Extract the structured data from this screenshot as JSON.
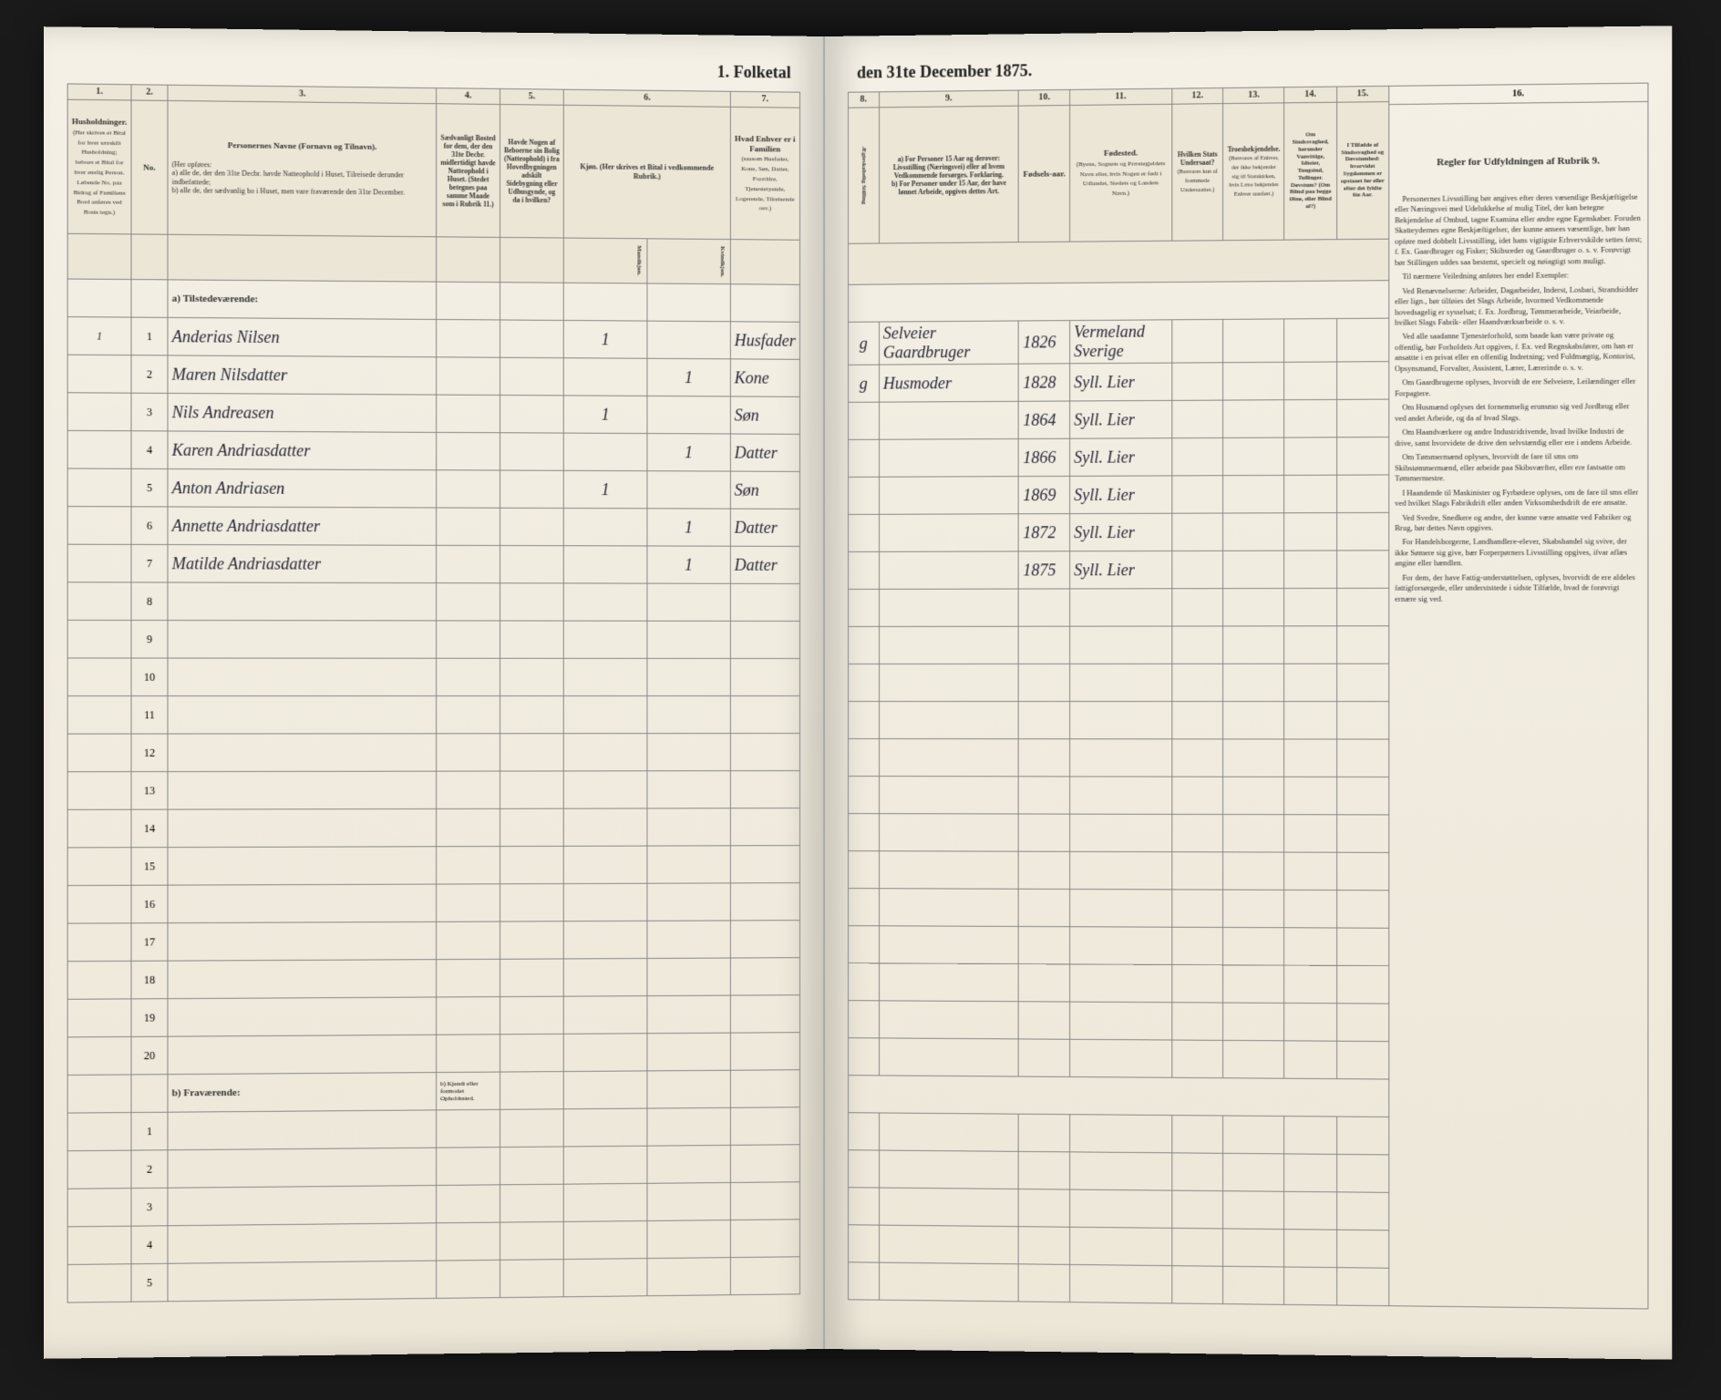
{
  "title_left": "1. Folketal",
  "title_right": "den 31te December 1875.",
  "columns": {
    "c1": "1.",
    "c2": "2.",
    "c3": "3.",
    "c4": "4.",
    "c5": "5.",
    "c6": "6.",
    "c7": "7.",
    "c8": "8.",
    "c9": "9.",
    "c10": "10.",
    "c11": "11.",
    "c12": "12.",
    "c13": "13.",
    "c14": "14.",
    "c15": "15.",
    "c16": "16."
  },
  "headers": {
    "h1": "Husholdninger.",
    "h1_sub": "(Her skrives et Bital for hver særskilt Husholdning; beboes et Bital for hver enslig Person. Løbende No. paa Bidrag af Familiens Bord anføres ved Bosts tegn.)",
    "h2": "No.",
    "h3": "Personernes Navne (Fornavn og Tilnavn).",
    "h3_sub": "(Her opføres:\na) alle de, der den 31te Decbr. havde Natteophold i Huset, Tilreisede derunder indbefattede;\nb) alle de, der sædvanlig bo i Huset, men vare fraværende den 31te December.",
    "h4": "Sædvanligt Bosted for dem, der den 31te Decbr. midlertidigt havde Natteophold i Huset. (Stedet betegnes paa samme Maade som i Rubrik 11.)",
    "h5": "Havde Nogen af Beboerne sin Bolig (Natteophold) i fra Hovedbygningen adskilt Sidebygning eller Udhusgynde, og da i hvilken?",
    "h6": "Kjøn. (Her skrives et Bital i vedkommende Rubrik.)",
    "h6a": "Mandkjøn.",
    "h6b": "Kvindkjøn.",
    "h7": "Hvad Enhver er i Familien",
    "h7_sub": "(saasom Husfader, Kone, Søn, Datter, Forældre, Tjenestetyende, Logerende, Tilreisende osv.)",
    "h8": "Ægteskabelig Stilling",
    "h9": "a) For Personer 15 Aar og derover: Livsstilling (Næringsvei) eller af hvem Vedkommende forsørges. Forklaring.\nb) For Personer under 15 Aar, der have lønnet Arbeide, opgives dettes Art.",
    "h10": "Fødsels-aar.",
    "h11": "Fødested.",
    "h11_sub": "(Byens, Sognets og Præstegjeldets Navn eller, hvis Nogen er født i Udlandet, Stedets og Landets Navn.)",
    "h12": "Hvilken Stats Undersaat?",
    "h12_sub": "(Besvares kun af fremmede Undersaatter.)",
    "h13": "Troesbekjendelse.",
    "h13_sub": "(Besvares af Enhver, der ikke bekjender sig til Statskirken, hvis Lære bekjendes Enhver uanført.)",
    "h14": "Om Sindssvaghed, herunder Vanvittige, Idioter, Tungsind, Tullinger. Døvstum? (Om Blind paa begge Øine, eller Blind af?)",
    "h15": "I Tilfælde af Sindssvaghed og Døvstumhed: hvorvidet Sygdommen er opstaaet før eller efter det fyldte 6te Aar.",
    "h16_title": "Regler for Udfyldningen af Rubrik 9."
  },
  "section_a": "a) Tilstedeværende:",
  "section_b": "b) Fraværende:",
  "section_b_note": "b) Kjendt eller formodet Opholdssted.",
  "rows": [
    {
      "n": "1",
      "hh": "1",
      "name": "Anderias Nilsen",
      "col6a": "1",
      "col6b": "",
      "rel": "Husfader",
      "est": "g",
      "occ": "Selveier Gaardbruger",
      "year": "1826",
      "place": "Vermeland Sverige"
    },
    {
      "n": "2",
      "hh": "",
      "name": "Maren Nilsdatter",
      "col6a": "",
      "col6b": "1",
      "rel": "Kone",
      "est": "g",
      "occ": "Husmoder",
      "year": "1828",
      "place": "Syll. Lier"
    },
    {
      "n": "3",
      "hh": "",
      "name": "Nils Andreasen",
      "col6a": "1",
      "col6b": "",
      "rel": "Søn",
      "est": "",
      "occ": "",
      "year": "1864",
      "place": "Syll. Lier"
    },
    {
      "n": "4",
      "hh": "",
      "name": "Karen Andriasdatter",
      "col6a": "",
      "col6b": "1",
      "rel": "Datter",
      "est": "",
      "occ": "",
      "year": "1866",
      "place": "Syll. Lier"
    },
    {
      "n": "5",
      "hh": "",
      "name": "Anton Andriasen",
      "col6a": "1",
      "col6b": "",
      "rel": "Søn",
      "est": "",
      "occ": "",
      "year": "1869",
      "place": "Syll. Lier"
    },
    {
      "n": "6",
      "hh": "",
      "name": "Annette Andriasdatter",
      "col6a": "",
      "col6b": "1",
      "rel": "Datter",
      "est": "",
      "occ": "",
      "year": "1872",
      "place": "Syll. Lier"
    },
    {
      "n": "7",
      "hh": "",
      "name": "Matilde Andriasdatter",
      "col6a": "",
      "col6b": "1",
      "rel": "Datter",
      "est": "",
      "occ": "",
      "year": "1875",
      "place": "Syll. Lier"
    }
  ],
  "empty_rows_a": [
    "8",
    "9",
    "10",
    "11",
    "12",
    "13",
    "14",
    "15",
    "16",
    "17",
    "18",
    "19",
    "20"
  ],
  "empty_rows_b": [
    "1",
    "2",
    "3",
    "4",
    "5"
  ],
  "instructions": {
    "header": "Regler for Udfyldningen\naf\nRubrik 9.",
    "p1": "Personernes Livsstilling bør angives efter deres væsentlige Beskjæftigelse eller Næringsvei med Udelukkelse af mulig Titel, der kan betegne Bekjendelse af Ombud, tagne Examina eller andre egne Egenskaber. Foruden Skatteydernes egne Beskjæftigelser, der kunne ansees væsentlige, bør han opføre med dobbelt Livsstilling, idet hans vigtigste Erhvervskilde settes først; f. Ex. Gaardbruger og Fisker; Skibsreder og Gaardbruger o. s. v. Forøvrigt bør Stillingen uddes saa bestemt, specielt og nøiagtigt som muligt.",
    "p2": "Til nærmere Veiledning anføres her endel Exempler:",
    "p3": "Ved Benævnelserne: Arbeider, Dagarbeider, Inderst, Losbari, Strandsidder eller lign., bør tilføies det Slags Arbeide, hvormed Vedkommende hovedsagelig er sysselsat; f. Ex. Jordbrug, Tømmerarbeide, Veiarbeide, hvilket Slags Fabrik- eller Haandværksarbeide o. s. v.",
    "p4": "Ved alle saadanne Tjenesteforhold, som baade kan være private og offentlig, bør Forholdets Art opgives, f. Ex. ved Regnskabsfører, om han er ansattte i en privat eller en offentlig Indretning; ved Fuldmægtig, Kontorist, Opsynsmand, Forvalter, Assistent, Lærer, Lærerinde o. s. v.",
    "p5": "Om Gaardbrugerne oplyses, hvorvidt de ere Selveiere, Leilændinger eller Forpagtere.",
    "p6": "Om Husmænd oplyses det fornemmelig erunsmo sig ved Jordbrug eller ved andet Arbeide, og da af hvad Slags.",
    "p7": "Om Haandværkere og andre Industridrivende, hvad hvilke Industri de drive, samt hvorvidete de drive den selvstændig eller ere i andens Arbeide.",
    "p8": "Om Tømmermænd oplyses, hvorvidt de fare til sms om Skibstømmermænd, eller arbeide paa Skibsværfter, eller ere fastsatte om Tømmermestre.",
    "p9": "I Haandende til Maskinister og Fyrbødere oplyses, om de fare til sms eller ved hvilket Slags Fabrikdrift eller anden Virksomhedsdrift de ere ansatte.",
    "p10": "Ved Svedre, Snedkere og andre, der kunne være ansatte ved Fabriker og Brug, bør dettes Navn opgives.",
    "p11": "For Handelsborgerne, Landhandlere-elever, Skabshandel sig svive, der ikke Sømere sig give, bær Forperpørners Livsstilling opgives, ifvar aflæs angine eller hændlen.",
    "p12": "For dem, der have Fattig-understøttelsen, oplyses, hvorvidt de ere aldeles fattigforsørgede, eller underststtede i sidste Tilfælde, hvad de forøvrigt ernære sig ved."
  }
}
